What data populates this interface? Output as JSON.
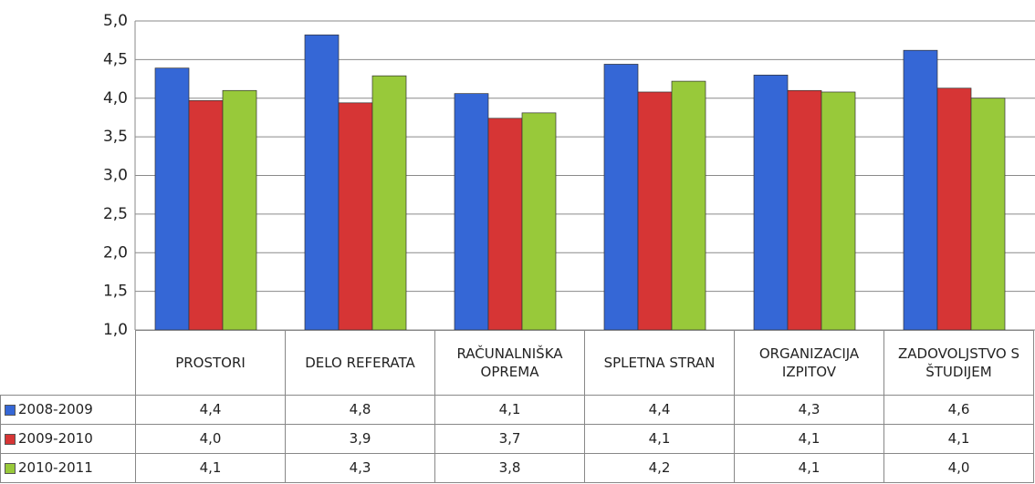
{
  "chart_data": {
    "type": "bar",
    "categories": [
      "PROSTORI",
      "DELO REFERATA",
      "RAČUNALNIŠKA OPREMA",
      "SPLETNA STRAN",
      "ORGANIZACIJA IZPITOV",
      "ZADOVOLJSTVO S ŠTUDIJEM"
    ],
    "series": [
      {
        "name": "2008-2009",
        "color": "#3567d6",
        "values": [
          4.39,
          4.82,
          4.06,
          4.44,
          4.3,
          4.62
        ],
        "value_labels": [
          "4,4",
          "4,8",
          "4,1",
          "4,4",
          "4,3",
          "4,6"
        ]
      },
      {
        "name": "2009-2010",
        "color": "#d63535",
        "values": [
          3.97,
          3.94,
          3.74,
          4.08,
          4.1,
          4.13
        ],
        "value_labels": [
          "4,0",
          "3,9",
          "3,7",
          "4,1",
          "4,1",
          "4,1"
        ]
      },
      {
        "name": "2010-2011",
        "color": "#98c93a",
        "values": [
          4.1,
          4.29,
          3.81,
          4.22,
          4.08,
          4.0
        ],
        "value_labels": [
          "4,1",
          "4,3",
          "3,8",
          "4,2",
          "4,1",
          "4,0"
        ]
      }
    ],
    "ylim": [
      1,
      5
    ],
    "yticks": [
      {
        "value": 1,
        "label": "1,0"
      },
      {
        "value": 1.5,
        "label": "1,5"
      },
      {
        "value": 2,
        "label": "2,0"
      },
      {
        "value": 2.5,
        "label": "2,5"
      },
      {
        "value": 3,
        "label": "3,0"
      },
      {
        "value": 3.5,
        "label": "3,5"
      },
      {
        "value": 4,
        "label": "4,0"
      },
      {
        "value": 4.5,
        "label": "4,5"
      },
      {
        "value": 5,
        "label": "5,0"
      }
    ],
    "grid": true
  }
}
